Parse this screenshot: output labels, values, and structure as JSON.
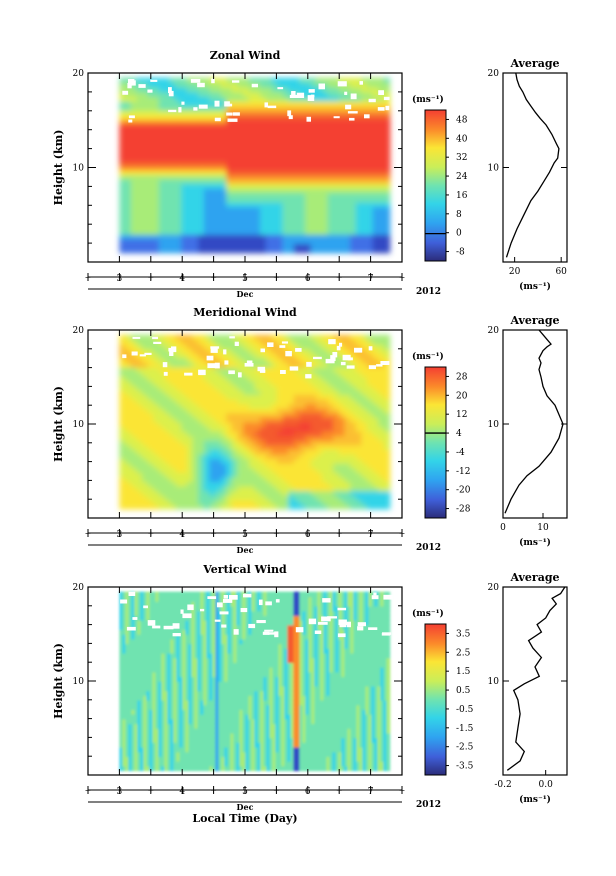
{
  "figure": {
    "xlabel": "Local Time (Day)",
    "year_label": "2012",
    "month_label": "Dec",
    "unit_label": "(ms⁻¹)",
    "ylabel": "Height (km)"
  },
  "chart_data": [
    {
      "type": "heatmap",
      "title": "Zonal Wind",
      "xlabel": "Dec",
      "ylabel": "Height (km)",
      "x_ticks": [
        "3",
        "4",
        "5",
        "6",
        "7"
      ],
      "y_ticks": [
        "10",
        "20"
      ],
      "xlim": [
        2.5,
        7.5
      ],
      "ylim": [
        0,
        20
      ],
      "data_range_x": [
        3.0,
        7.3
      ],
      "data_range_y": [
        1,
        19.5
      ],
      "colorbar": {
        "label": "(ms⁻¹)",
        "ticks": [
          "48",
          "40",
          "32",
          "24",
          "16",
          "8",
          "0",
          "-8"
        ],
        "zero_contour": "0"
      },
      "profile": {
        "title": "Average",
        "xlabel": "(ms⁻¹)",
        "x_ticks": [
          "20",
          "60"
        ],
        "xlim": [
          10,
          65
        ],
        "y_ticks": [
          "10",
          "20"
        ],
        "points": [
          [
            13,
            0.5
          ],
          [
            17,
            2
          ],
          [
            22,
            3.5
          ],
          [
            28,
            5
          ],
          [
            34,
            6.5
          ],
          [
            40,
            7.5
          ],
          [
            45,
            8.5
          ],
          [
            50,
            9.5
          ],
          [
            54,
            10.5
          ],
          [
            57,
            11
          ],
          [
            58,
            12
          ],
          [
            56,
            12.5
          ],
          [
            52,
            13.5
          ],
          [
            47,
            14.5
          ],
          [
            42,
            15.2
          ],
          [
            38,
            15.8
          ],
          [
            34,
            16.5
          ],
          [
            30,
            17.2
          ],
          [
            27,
            18
          ],
          [
            24,
            18.6
          ],
          [
            22,
            19.3
          ],
          [
            21,
            20
          ]
        ]
      }
    },
    {
      "type": "heatmap",
      "title": "Meridional Wind",
      "xlabel": "Dec",
      "ylabel": "Height (km)",
      "x_ticks": [
        "3",
        "4",
        "5",
        "6",
        "7"
      ],
      "y_ticks": [
        "10",
        "20"
      ],
      "xlim": [
        2.5,
        7.5
      ],
      "ylim": [
        0,
        20
      ],
      "data_range_x": [
        3.0,
        7.3
      ],
      "data_range_y": [
        1,
        19.5
      ],
      "colorbar": {
        "label": "(ms⁻¹)",
        "ticks": [
          "28",
          "20",
          "12",
          "4",
          "-4",
          "-12",
          "-20",
          "-28"
        ],
        "zero_contour": "0"
      },
      "profile": {
        "title": "Average",
        "xlabel": "(ms⁻¹)",
        "x_ticks": [
          "0",
          "10"
        ],
        "xlim": [
          0,
          16
        ],
        "y_ticks": [
          "10",
          "20"
        ],
        "points": [
          [
            0.5,
            0.5
          ],
          [
            2,
            2
          ],
          [
            4,
            3.5
          ],
          [
            6,
            4.5
          ],
          [
            9,
            5.5
          ],
          [
            12,
            7
          ],
          [
            14,
            8.5
          ],
          [
            15,
            10
          ],
          [
            14,
            11
          ],
          [
            13,
            12
          ],
          [
            11,
            13
          ],
          [
            10,
            14
          ],
          [
            9.5,
            15
          ],
          [
            9,
            15.8
          ],
          [
            9.5,
            16.5
          ],
          [
            9,
            17
          ],
          [
            10,
            17.8
          ],
          [
            11,
            18.2
          ],
          [
            12,
            18.5
          ],
          [
            11,
            19
          ],
          [
            10,
            19.5
          ],
          [
            9,
            20
          ]
        ]
      }
    },
    {
      "type": "heatmap",
      "title": "Vertical Wind",
      "xlabel": "Dec",
      "ylabel": "Height (km)",
      "x_ticks": [
        "3",
        "4",
        "5",
        "6",
        "7"
      ],
      "y_ticks": [
        "10",
        "20"
      ],
      "xlim": [
        2.5,
        7.5
      ],
      "ylim": [
        0,
        20
      ],
      "data_range_x": [
        3.0,
        7.3
      ],
      "data_range_y": [
        0.5,
        19.5
      ],
      "colorbar": {
        "label": "(ms⁻¹)",
        "ticks": [
          "3.5",
          "2.5",
          "1.5",
          "0.5",
          "-0.5",
          "-1.5",
          "-2.5",
          "-3.5"
        ]
      },
      "profile": {
        "title": "Average",
        "xlabel": "(ms⁻¹)",
        "x_ticks": [
          "-0.2",
          "0.0"
        ],
        "xlim": [
          -0.2,
          0.1
        ],
        "y_ticks": [
          "10",
          "20"
        ],
        "points": [
          [
            -0.18,
            0.5
          ],
          [
            -0.12,
            1.5
          ],
          [
            -0.1,
            2.5
          ],
          [
            -0.14,
            3.5
          ],
          [
            -0.13,
            5
          ],
          [
            -0.12,
            6.5
          ],
          [
            -0.13,
            8
          ],
          [
            -0.15,
            9
          ],
          [
            -0.1,
            9.7
          ],
          [
            -0.03,
            10.5
          ],
          [
            -0.05,
            11.5
          ],
          [
            -0.02,
            12.5
          ],
          [
            -0.06,
            13.5
          ],
          [
            -0.08,
            14.3
          ],
          [
            -0.02,
            15.2
          ],
          [
            -0.04,
            16
          ],
          [
            0.0,
            16.7
          ],
          [
            0.02,
            17.5
          ],
          [
            0.05,
            18.2
          ],
          [
            0.03,
            18.8
          ],
          [
            0.07,
            19.3
          ],
          [
            0.09,
            20
          ]
        ]
      }
    }
  ]
}
